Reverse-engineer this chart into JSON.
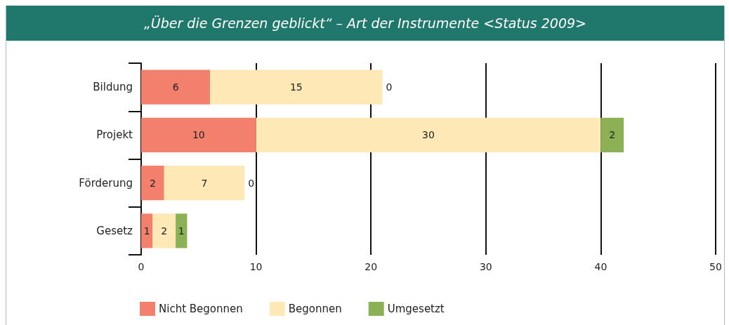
{
  "chart_data": {
    "type": "bar",
    "orientation": "horizontal",
    "stacked": true,
    "title": "„Über die Grenzen geblickt“ – Art der Instrumente <Status 2009>",
    "categories": [
      "Bildung",
      "Projekt",
      "Förderung",
      "Gesetz"
    ],
    "series": [
      {
        "name": "Nicht Begonnen",
        "color": "#f2806c",
        "values": [
          6,
          10,
          2,
          1
        ]
      },
      {
        "name": "Begonnen",
        "color": "#fde8b6",
        "values": [
          15,
          30,
          7,
          2
        ]
      },
      {
        "name": "Umgesetzt",
        "color": "#8cb155",
        "values": [
          0,
          2,
          0,
          1
        ]
      }
    ],
    "xlim": [
      0,
      50
    ],
    "xticks": [
      0,
      10,
      20,
      30,
      40,
      50
    ],
    "grid": "x",
    "legend": "bottom",
    "data_labels": true
  }
}
